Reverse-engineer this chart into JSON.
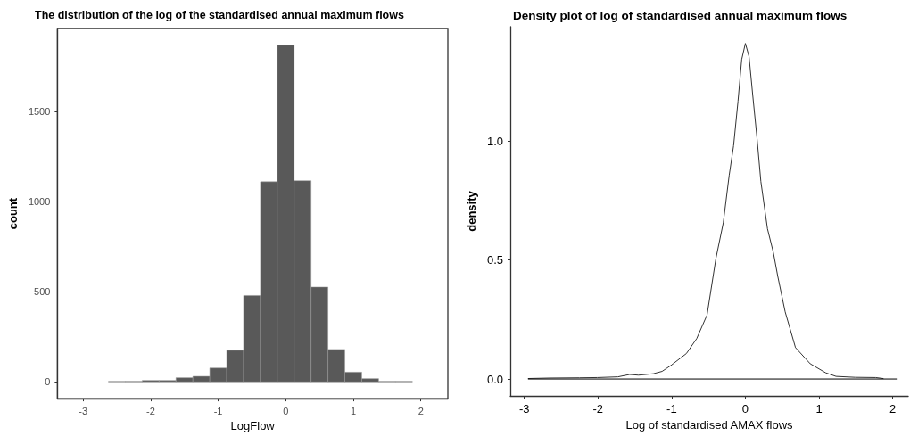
{
  "chart_data": [
    {
      "type": "histogram",
      "title": "The distribution of the log of the standardised annual maximum flows",
      "xlabel": "LogFlow",
      "ylabel": "count",
      "color": "#595959",
      "bins": [
        -2.625,
        -2.375,
        -2.125,
        -1.875,
        -1.625,
        -1.375,
        -1.125,
        -0.875,
        -0.625,
        -0.375,
        -0.125,
        0.125,
        0.375,
        0.625,
        0.875,
        1.125,
        1.375,
        1.625,
        1.875
      ],
      "values": [
        3,
        3,
        8,
        8,
        23,
        31,
        77,
        175,
        479,
        1110,
        1868,
        1116,
        526,
        180,
        54,
        18,
        3,
        3
      ],
      "xlim": [
        -3.38,
        2.4
      ],
      "xticks": [
        -3,
        -2,
        -1,
        0,
        1,
        2
      ],
      "ylim": [
        -93,
        1960
      ],
      "yticks": [
        0,
        500,
        1000,
        1500
      ],
      "grid": false
    },
    {
      "type": "line",
      "title": "Density plot of log of standardised annual maximum flows",
      "xlabel": "Log of standardised AMAX flows",
      "ylabel": "density",
      "marker": "none",
      "line_style": "solid",
      "grid": false,
      "series": [
        {
          "color": "#333333",
          "x": [
            -2.945,
            -2.65,
            -2.25,
            -2.01,
            -1.73,
            -1.57,
            -1.45,
            -1.25,
            -1.13,
            -1.01,
            -0.8,
            -0.66,
            -0.52,
            -0.4,
            -0.3,
            -0.22,
            -0.16,
            -0.1,
            -0.05,
            0,
            0.05,
            0.1,
            0.16,
            0.21,
            0.3,
            0.38,
            0.44,
            0.54,
            0.68,
            0.88,
            1.09,
            1.23,
            1.49,
            1.77,
            1.87
          ],
          "values": [
            0.002,
            0.004,
            0.005,
            0.006,
            0.009,
            0.019,
            0.016,
            0.022,
            0.032,
            0.057,
            0.107,
            0.17,
            0.269,
            0.506,
            0.656,
            0.855,
            0.98,
            1.167,
            1.342,
            1.41,
            1.354,
            1.192,
            1.005,
            0.83,
            0.631,
            0.531,
            0.431,
            0.282,
            0.132,
            0.064,
            0.026,
            0.011,
            0.007,
            0.006,
            0.002
          ]
        },
        {
          "color": "#000000",
          "x": [
            -2.945,
            2.05
          ],
          "values": [
            0,
            0
          ]
        }
      ],
      "xlim": [
        -3.19,
        2.21
      ],
      "xticks": [
        -3,
        -2,
        -1,
        0,
        1,
        2
      ],
      "ylim": [
        -0.071,
        1.48
      ],
      "yticks": [
        {
          "value": 0,
          "label": "0.0"
        },
        {
          "value": 0.5,
          "label": "0.5"
        },
        {
          "value": 1,
          "label": "1.0"
        }
      ]
    }
  ]
}
